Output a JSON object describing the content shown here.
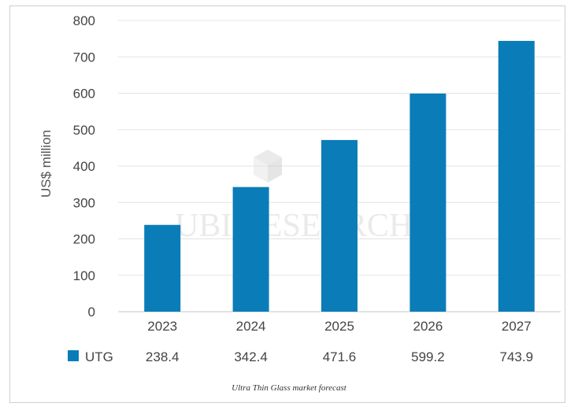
{
  "chart_data": {
    "type": "bar",
    "title": "",
    "xlabel": "",
    "ylabel": "US$ million",
    "categories": [
      "2023",
      "2024",
      "2025",
      "2026",
      "2027"
    ],
    "series": [
      {
        "name": "UTG",
        "values": [
          238.4,
          342.4,
          471.6,
          599.2,
          743.9
        ]
      }
    ],
    "value_labels": [
      "238.4",
      "342.4",
      "471.6",
      "599.2",
      "743.9"
    ],
    "ylim": [
      0,
      800
    ],
    "yticks": [
      0,
      100,
      200,
      300,
      400,
      500,
      600,
      700,
      800
    ],
    "grid": true,
    "legend": "bottom-left",
    "bar_color": "#0a7db8",
    "grid_color": "#e3e3e3",
    "watermark": "UBI RESEARCH"
  },
  "caption": "Ultra Thin Glass market forecast"
}
